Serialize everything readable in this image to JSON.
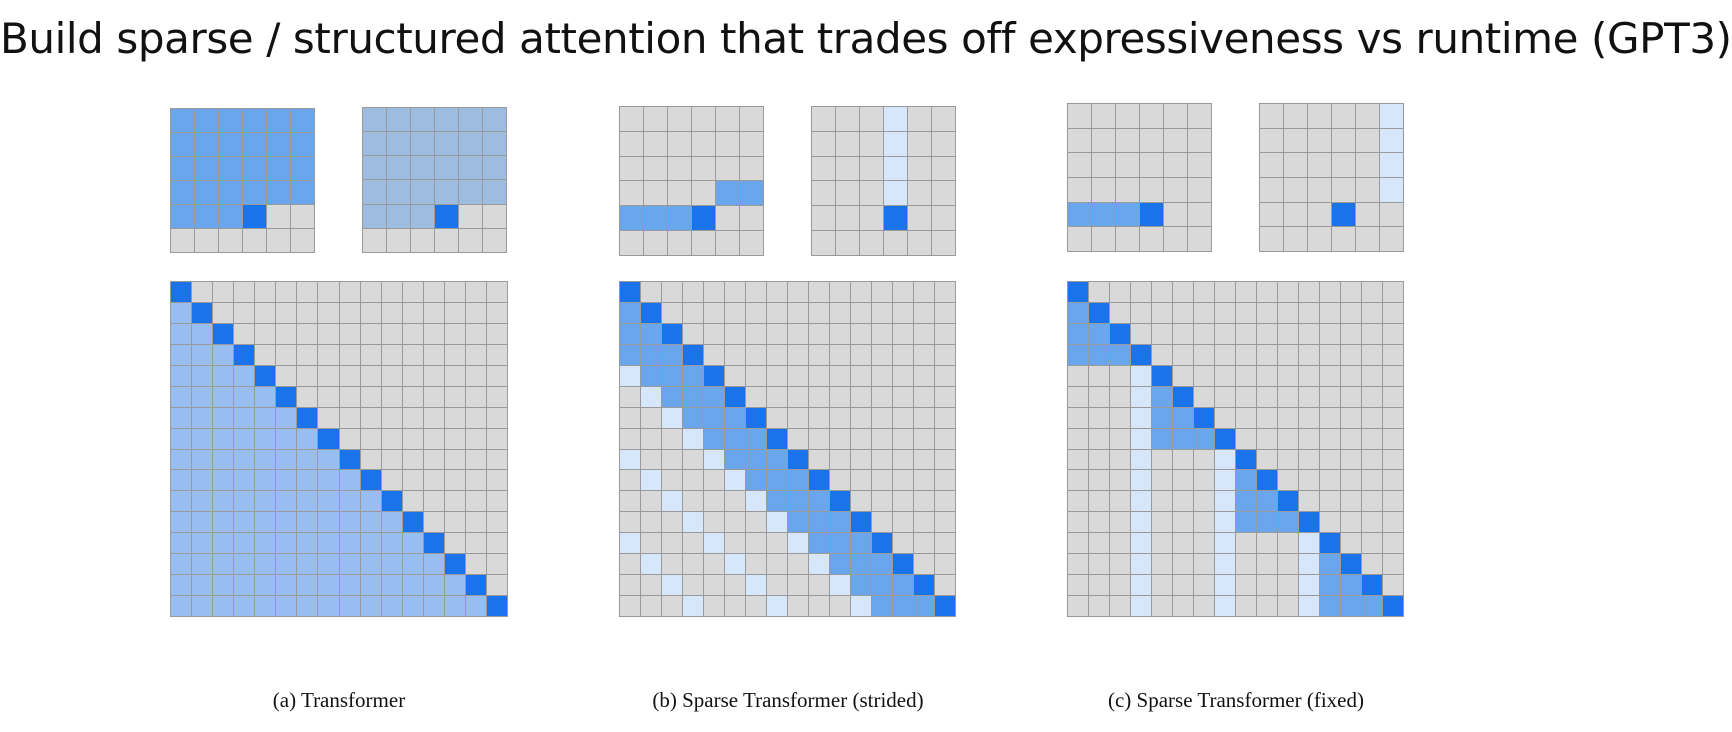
{
  "title": "Build sparse / structured attention that trades off expressiveness vs runtime (GPT3)",
  "colors": {
    "empty": "#d9d9d9",
    "strong": "#1a73e8",
    "medium": "#6aa6ec",
    "full_light": "#98bdf0",
    "grayblue": "#9ebbe0",
    "pale": "#d6e7fb",
    "border": "#9a9a9a"
  },
  "panels": [
    {
      "id": "a",
      "caption": "(a) Transformer",
      "small_grids": [
        {
          "grid": "6x6",
          "rows": [
            "MMMMMM",
            "MMMMMM",
            "MMMMMM",
            "MMMMMM",
            "MMMS..",
            "......"
          ]
        },
        {
          "grid": "6x6",
          "rows": [
            "GGGGGG",
            "GGGGGG",
            "GGGGGG",
            "GGGGGG",
            "GGGS..",
            "......"
          ]
        }
      ],
      "big_grid": {
        "grid": "16x16",
        "rows": [
          "S...............",
          "FS..............",
          "FFS.............",
          "FFFS............",
          "FFFFS...........",
          "FFFFFS..........",
          "FFFFFFS.........",
          "FFFFFFFS........",
          "FFFFFFFFS.......",
          "FFFFFFFFFS......",
          "FFFFFFFFFFS.....",
          "FFFFFFFFFFFS....",
          "FFFFFFFFFFFFS...",
          "FFFFFFFFFFFFFS..",
          "FFFFFFFFFFFFFFS.",
          "FFFFFFFFFFFFFFFS"
        ]
      }
    },
    {
      "id": "b",
      "caption": "(b) Sparse Transformer (strided)",
      "small_grids": [
        {
          "grid": "6x6",
          "rows": [
            "......",
            "......",
            "......",
            "....MM",
            "MMMS..",
            "......"
          ]
        },
        {
          "grid": "6x6",
          "rows": [
            "...P..",
            "...P..",
            "...P..",
            "...P..",
            "...S..",
            "......"
          ]
        }
      ],
      "big_grid": {
        "grid": "16x16",
        "rows": [
          "S...............",
          "MS..............",
          "MMS.............",
          "MMMS............",
          "PMMMS...........",
          ".PMMMS..........",
          "..PMMMS.........",
          "...PMMMS........",
          "P...PMMMS.......",
          ".P...PMMMS......",
          "..P...PMMMS.....",
          "...P...PMMMS....",
          "P...P...PMMMS...",
          ".P...P...PMMMS..",
          "..P...P...PMMMS.",
          "...P...P...PMMMS"
        ]
      }
    },
    {
      "id": "c",
      "caption": "(c) Sparse Transformer (fixed)",
      "small_grids": [
        {
          "grid": "6x6",
          "rows": [
            "......",
            "......",
            "......",
            "......",
            "MMMS..",
            "......"
          ]
        },
        {
          "grid": "6x6",
          "rows": [
            ".....P",
            ".....P",
            ".....P",
            ".....P",
            "...S..",
            "......"
          ]
        }
      ],
      "big_grid": {
        "grid": "16x16",
        "rows": [
          "S...............",
          "MS..............",
          "MMS.............",
          "MMMS............",
          "...PS...........",
          "...PMS..........",
          "...PMMS.........",
          "...PMMMS........",
          "...P...PS.......",
          "...P...PMS......",
          "...P...PMMS.....",
          "...P...PMMMS....",
          "...P...P...PS...",
          "...P...P...PMS..",
          "...P...P...PMMS.",
          "...P...P...PMMMS"
        ]
      }
    }
  ],
  "legend_codes": {
    ".": "empty",
    "S": "strong",
    "M": "medium",
    "F": "full_light",
    "G": "grayblue",
    "P": "pale"
  }
}
